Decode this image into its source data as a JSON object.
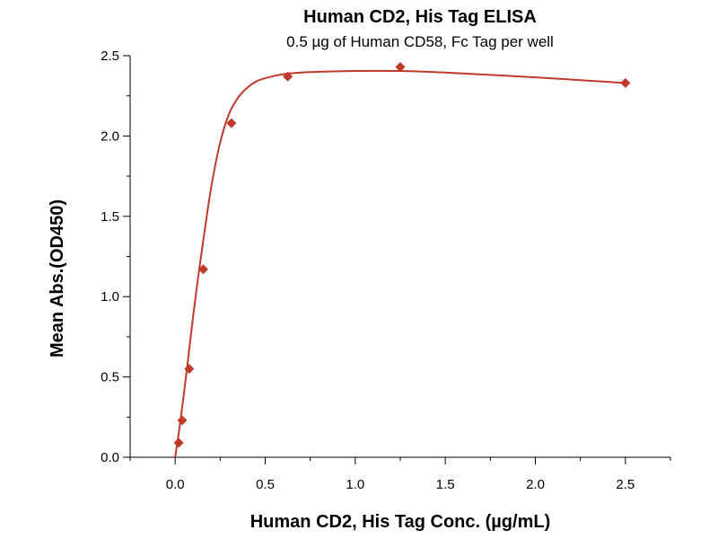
{
  "chart_data": {
    "type": "scatter",
    "title": "Human CD2, His Tag ELISA",
    "subtitle": "0.5 µg of Human CD58, Fc Tag per well",
    "xlabel": "Human CD2, His Tag Conc. (µg/mL)",
    "ylabel": "Mean Abs.(OD450)",
    "xlim": [
      -0.25,
      2.75
    ],
    "ylim": [
      0,
      2.5
    ],
    "xticks": [
      "0.0",
      "0.5",
      "1.0",
      "1.5",
      "2.0",
      "2.5"
    ],
    "yticks": [
      "0.0",
      "0.5",
      "1.0",
      "1.5",
      "2.0",
      "2.5"
    ],
    "grid": false,
    "color": "#c0392b",
    "series": [
      {
        "x": [
          0.0195,
          0.039,
          0.078,
          0.156,
          0.3125,
          0.625,
          1.25,
          2.5
        ],
        "y": [
          0.09,
          0.23,
          0.55,
          1.17,
          2.08,
          2.37,
          2.43,
          2.33
        ]
      }
    ],
    "fit_curve": {
      "x": [
        0.0,
        0.02,
        0.04,
        0.06,
        0.08,
        0.1,
        0.13,
        0.16,
        0.2,
        0.25,
        0.3,
        0.35,
        0.4,
        0.45,
        0.5,
        0.6,
        0.7,
        0.8,
        1.0,
        1.25,
        1.5,
        2.0,
        2.5
      ],
      "y": [
        0.0,
        0.15,
        0.32,
        0.5,
        0.69,
        0.88,
        1.14,
        1.38,
        1.68,
        1.96,
        2.14,
        2.24,
        2.3,
        2.34,
        2.36,
        2.385,
        2.395,
        2.4,
        2.405,
        2.405,
        2.395,
        2.365,
        2.33
      ]
    }
  }
}
